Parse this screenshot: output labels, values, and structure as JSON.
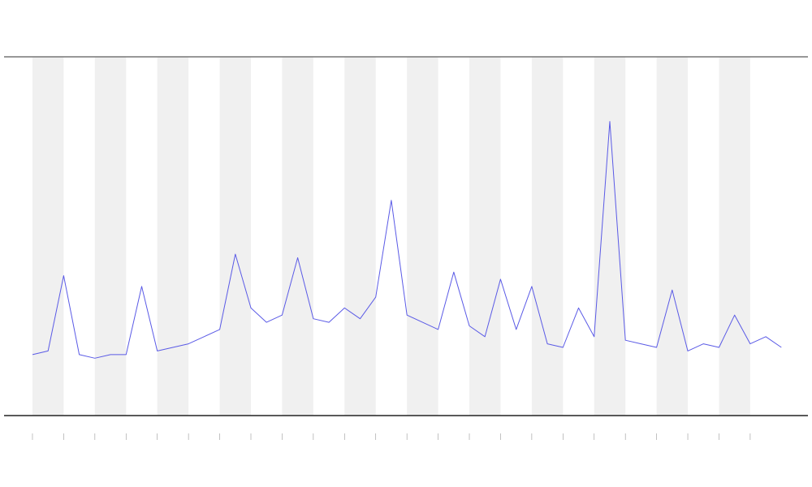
{
  "chart_data": {
    "type": "line",
    "x": [
      0,
      0.5,
      1,
      1.5,
      2,
      2.5,
      3,
      3.5,
      4,
      4.5,
      5,
      5.5,
      6,
      6.5,
      7,
      7.5,
      8,
      8.5,
      9,
      9.5,
      10,
      10.5,
      11,
      11.5,
      12,
      12.5,
      13,
      13.5,
      14,
      14.5,
      15,
      15.5,
      16,
      16.5,
      17,
      17.5,
      18,
      18.5,
      19,
      19.5,
      20,
      20.5,
      21,
      21.5,
      22,
      22.5,
      23,
      23.5,
      24
    ],
    "values": [
      17,
      18,
      39,
      17,
      16,
      17,
      17,
      36,
      18,
      19,
      20,
      22,
      24,
      45,
      30,
      26,
      28,
      44,
      27,
      26,
      30,
      27,
      33,
      60,
      28,
      26,
      24,
      40,
      25,
      22,
      38,
      24,
      36,
      20,
      19,
      30,
      22,
      82,
      21,
      20,
      19,
      35,
      18,
      20,
      19,
      28,
      20,
      22,
      19
    ],
    "color": "#5a5ae6",
    "xlim": [
      -0.91,
      24.85
    ],
    "xticks": [
      0,
      1,
      2,
      3,
      4,
      5,
      6,
      7,
      8,
      9,
      10,
      11,
      12,
      13,
      14,
      15,
      16,
      17,
      18,
      19,
      20,
      21,
      22,
      23
    ],
    "ylim": [
      0,
      100
    ],
    "bands": [
      [
        0,
        1
      ],
      [
        2,
        3
      ],
      [
        4,
        5
      ],
      [
        6,
        7
      ],
      [
        8,
        9
      ],
      [
        10,
        11
      ],
      [
        12,
        13
      ],
      [
        14,
        15
      ],
      [
        16,
        17
      ],
      [
        18,
        19
      ],
      [
        20,
        21
      ],
      [
        22,
        23
      ]
    ],
    "band_color": "#f0f0f0"
  }
}
